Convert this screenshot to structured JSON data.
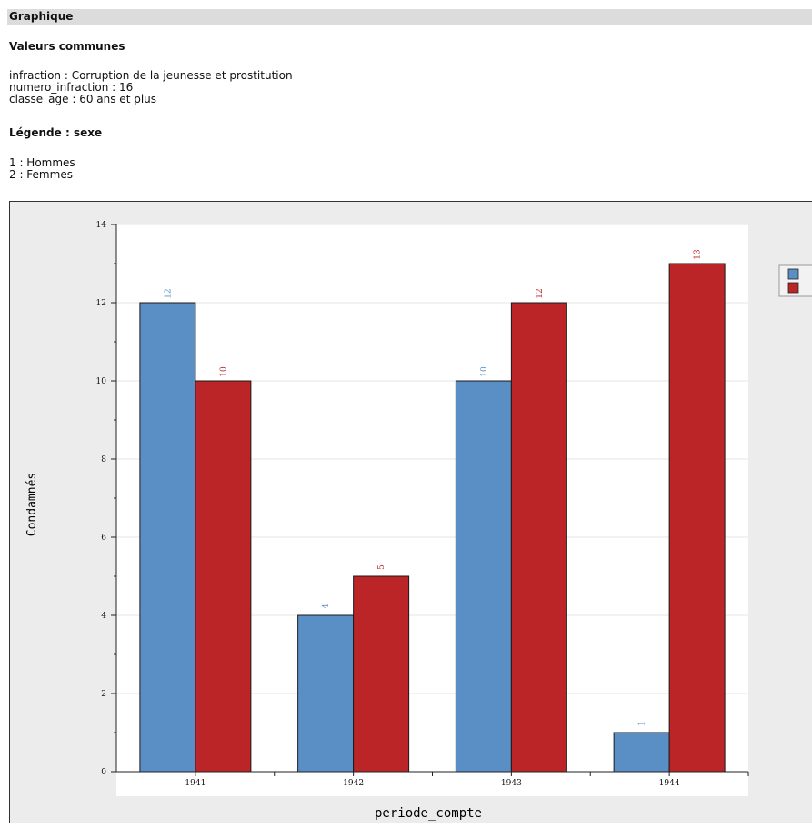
{
  "header": {
    "title": "Graphique"
  },
  "common_values": {
    "title": "Valeurs communes",
    "lines": [
      "infraction : Corruption de la jeunesse et prostitution",
      "numero_infraction : 16",
      "classe_age : 60 ans et plus"
    ]
  },
  "legend_text": {
    "title": "Légende : sexe",
    "lines": [
      "1 : Hommes",
      "2 : Femmes"
    ]
  },
  "colors": {
    "series1": "#5a8fc6",
    "series2": "#bc2527"
  },
  "chart_data": {
    "type": "bar",
    "categories": [
      "1941",
      "1942",
      "1943",
      "1944"
    ],
    "series": [
      {
        "values": [
          12,
          4,
          10,
          1
        ],
        "color": "#5a8fc6"
      },
      {
        "values": [
          10,
          5,
          12,
          13
        ],
        "color": "#bc2527"
      }
    ],
    "xlabel": "periode_compte",
    "ylabel": "Condamnés",
    "ylim": [
      0,
      14
    ],
    "yticks": [
      0,
      2,
      4,
      6,
      8,
      10,
      12,
      14
    ],
    "grid": true,
    "data_labels": true,
    "legend": "top-right"
  }
}
